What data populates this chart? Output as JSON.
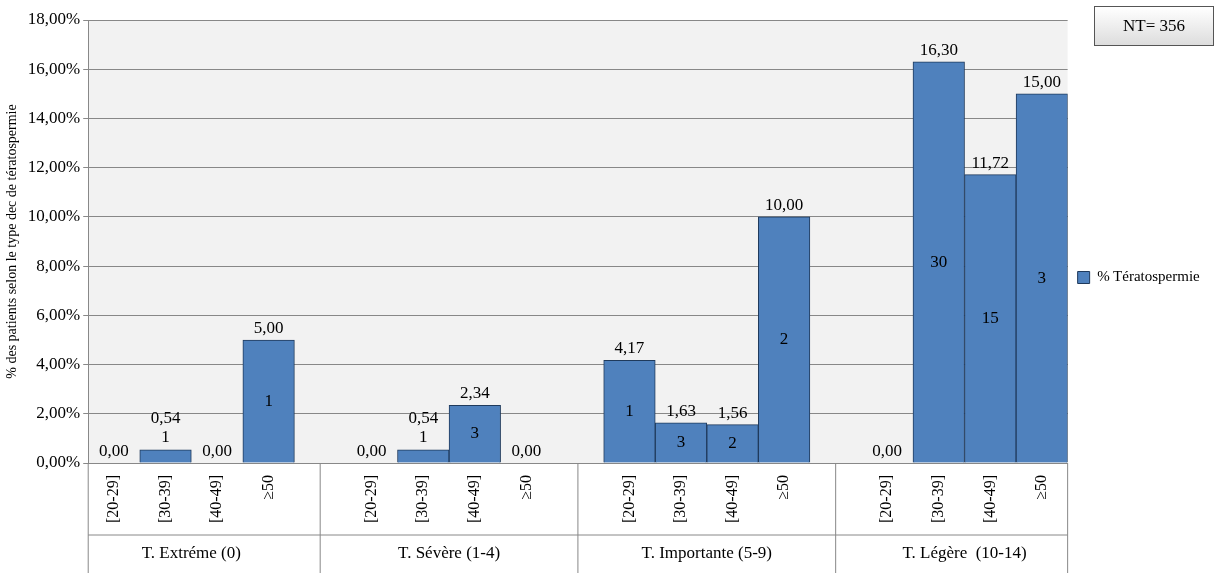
{
  "chart_data": {
    "type": "bar",
    "ylabel": "% des patients selon le type dec de tératospermie",
    "categories": [
      "[20-29]",
      "[30-39]",
      "[40-49]",
      "≥50",
      null,
      "[20-29]",
      "[30-39]",
      "[40-49]",
      "≥50",
      null,
      "[20-29]",
      "[30-39]",
      "[40-49]",
      "≥50",
      null,
      "[20-29]",
      "[30-39]",
      "[40-49]",
      "≥50"
    ],
    "series": [
      {
        "name": "% Tératospermie",
        "color": "#4f81bd",
        "values": [
          0,
          0.54,
          0,
          5.0,
          null,
          0,
          0.54,
          2.34,
          0,
          null,
          4.17,
          1.63,
          1.56,
          10.0,
          null,
          0,
          16.3,
          11.72,
          15.0
        ],
        "value_labels": [
          "0,00",
          "0,54",
          "0,00",
          "5,00",
          null,
          "0,00",
          "0,54",
          "2,34",
          "0,00",
          null,
          "4,17",
          "1,63",
          "1,56",
          "10,00",
          null,
          "0,00",
          "16,30",
          "11,72",
          "15,00"
        ]
      }
    ],
    "ylim": [
      0,
      18
    ],
    "yticks": [
      {
        "value": 0,
        "label": "0,00%"
      },
      {
        "value": 2,
        "label": "2,00%"
      },
      {
        "value": 4,
        "label": "4,00%"
      },
      {
        "value": 6,
        "label": "6,00%"
      },
      {
        "value": 8,
        "label": "8,00%"
      },
      {
        "value": 10,
        "label": "10,00%"
      },
      {
        "value": 12,
        "label": "12,00%"
      },
      {
        "value": 14,
        "label": "14,00%"
      },
      {
        "value": 16,
        "label": "16,00%"
      },
      {
        "value": 18,
        "label": "18,00%"
      }
    ],
    "grid": "y",
    "legend": "right",
    "annotations": [
      "T. Extréme (0)",
      "T. Sévère (1-4)",
      "T. Importante (5-9)",
      "T. Légère  (10-14)",
      "1",
      "1",
      "1",
      "3",
      "1",
      "3",
      "2",
      "2",
      "30",
      "15",
      "3",
      "NT= 356"
    ]
  }
}
